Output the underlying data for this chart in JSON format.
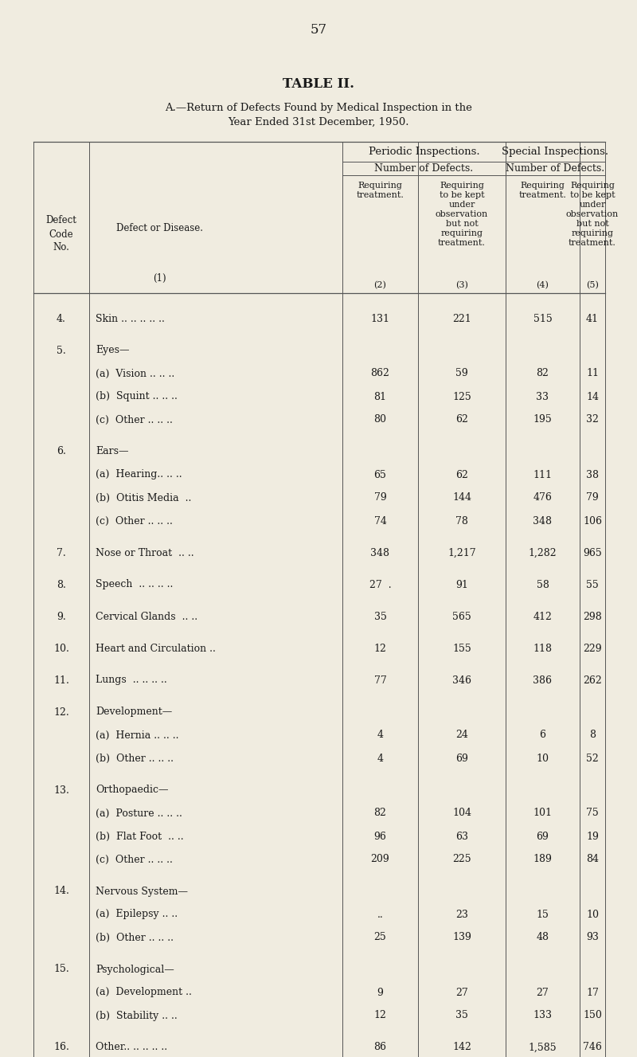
{
  "page_number": "57",
  "title1": "TABLE II.",
  "title2": "A.—Return of Defects Found by Medical Inspection in the",
  "title3": "Year Ended 31st December, 1950.",
  "background_color": "#f0ece0",
  "rows": [
    {
      "code": "4.",
      "disease": "Skin .. .. .. .. ..",
      "v2": "131",
      "v3": "221",
      "v4": "515",
      "v5": "41"
    },
    {
      "code": "5.",
      "disease": "Eyes—",
      "v2": "",
      "v3": "",
      "v4": "",
      "v5": ""
    },
    {
      "code": "",
      "disease": "(a)  Vision .. .. ..",
      "v2": "862",
      "v3": "59",
      "v4": "82",
      "v5": "11"
    },
    {
      "code": "",
      "disease": "(b)  Squint .. .. ..",
      "v2": "81",
      "v3": "125",
      "v4": "33",
      "v5": "14"
    },
    {
      "code": "",
      "disease": "(c)  Other .. .. ..",
      "v2": "80",
      "v3": "62",
      "v4": "195",
      "v5": "32"
    },
    {
      "code": "6.",
      "disease": "Ears—",
      "v2": "",
      "v3": "",
      "v4": "",
      "v5": ""
    },
    {
      "code": "",
      "disease": "(a)  Hearing.. .. ..",
      "v2": "65",
      "v3": "62",
      "v4": "111",
      "v5": "38"
    },
    {
      "code": "",
      "disease": "(b)  Otitis Media  ..",
      "v2": "79",
      "v3": "144",
      "v4": "476",
      "v5": "79"
    },
    {
      "code": "",
      "disease": "(c)  Other .. .. ..",
      "v2": "74",
      "v3": "78",
      "v4": "348",
      "v5": "106"
    },
    {
      "code": "7.",
      "disease": "Nose or Throat  .. ..",
      "v2": "348",
      "v3": "1,217",
      "v4": "1,282",
      "v5": "965"
    },
    {
      "code": "8.",
      "disease": "Speech  .. .. .. ..",
      "v2": "27  .",
      "v3": "91",
      "v4": "58",
      "v5": "55"
    },
    {
      "code": "9.",
      "disease": "Cervical Glands  .. ..",
      "v2": "35",
      "v3": "565",
      "v4": "412",
      "v5": "298"
    },
    {
      "code": "10.",
      "disease": "Heart and Circulation ..",
      "v2": "12",
      "v3": "155",
      "v4": "118",
      "v5": "229"
    },
    {
      "code": "11.",
      "disease": "Lungs  .. .. .. ..",
      "v2": "77",
      "v3": "346",
      "v4": "386",
      "v5": "262"
    },
    {
      "code": "12.",
      "disease": "Development—",
      "v2": "",
      "v3": "",
      "v4": "",
      "v5": ""
    },
    {
      "code": "",
      "disease": "(a)  Hernia .. .. ..",
      "v2": "4",
      "v3": "24",
      "v4": "6",
      "v5": "8"
    },
    {
      "code": "",
      "disease": "(b)  Other .. .. ..",
      "v2": "4",
      "v3": "69",
      "v4": "10",
      "v5": "52"
    },
    {
      "code": "13.",
      "disease": "Orthopaedic—",
      "v2": "",
      "v3": "",
      "v4": "",
      "v5": ""
    },
    {
      "code": "",
      "disease": "(a)  Posture .. .. ..",
      "v2": "82",
      "v3": "104",
      "v4": "101",
      "v5": "75"
    },
    {
      "code": "",
      "disease": "(b)  Flat Foot  .. ..",
      "v2": "96",
      "v3": "63",
      "v4": "69",
      "v5": "19"
    },
    {
      "code": "",
      "disease": "(c)  Other .. .. ..",
      "v2": "209",
      "v3": "225",
      "v4": "189",
      "v5": "84"
    },
    {
      "code": "14.",
      "disease": "Nervous System—",
      "v2": "",
      "v3": "",
      "v4": "",
      "v5": ""
    },
    {
      "code": "",
      "disease": "(a)  Epilepsy .. ..",
      "v2": "..",
      "v3": "23",
      "v4": "15",
      "v5": "10"
    },
    {
      "code": "",
      "disease": "(b)  Other .. .. ..",
      "v2": "25",
      "v3": "139",
      "v4": "48",
      "v5": "93"
    },
    {
      "code": "15.",
      "disease": "Psychological—",
      "v2": "",
      "v3": "",
      "v4": "",
      "v5": ""
    },
    {
      "code": "",
      "disease": "(a)  Development ..",
      "v2": "9",
      "v3": "27",
      "v4": "27",
      "v5": "17"
    },
    {
      "code": "",
      "disease": "(b)  Stability .. ..",
      "v2": "12",
      "v3": "35",
      "v4": "133",
      "v5": "150"
    },
    {
      "code": "16.",
      "disease": "Other.. .. .. .. ..",
      "v2": "86",
      "v3": "142",
      "v4": "1,585",
      "v5": "746"
    }
  ]
}
